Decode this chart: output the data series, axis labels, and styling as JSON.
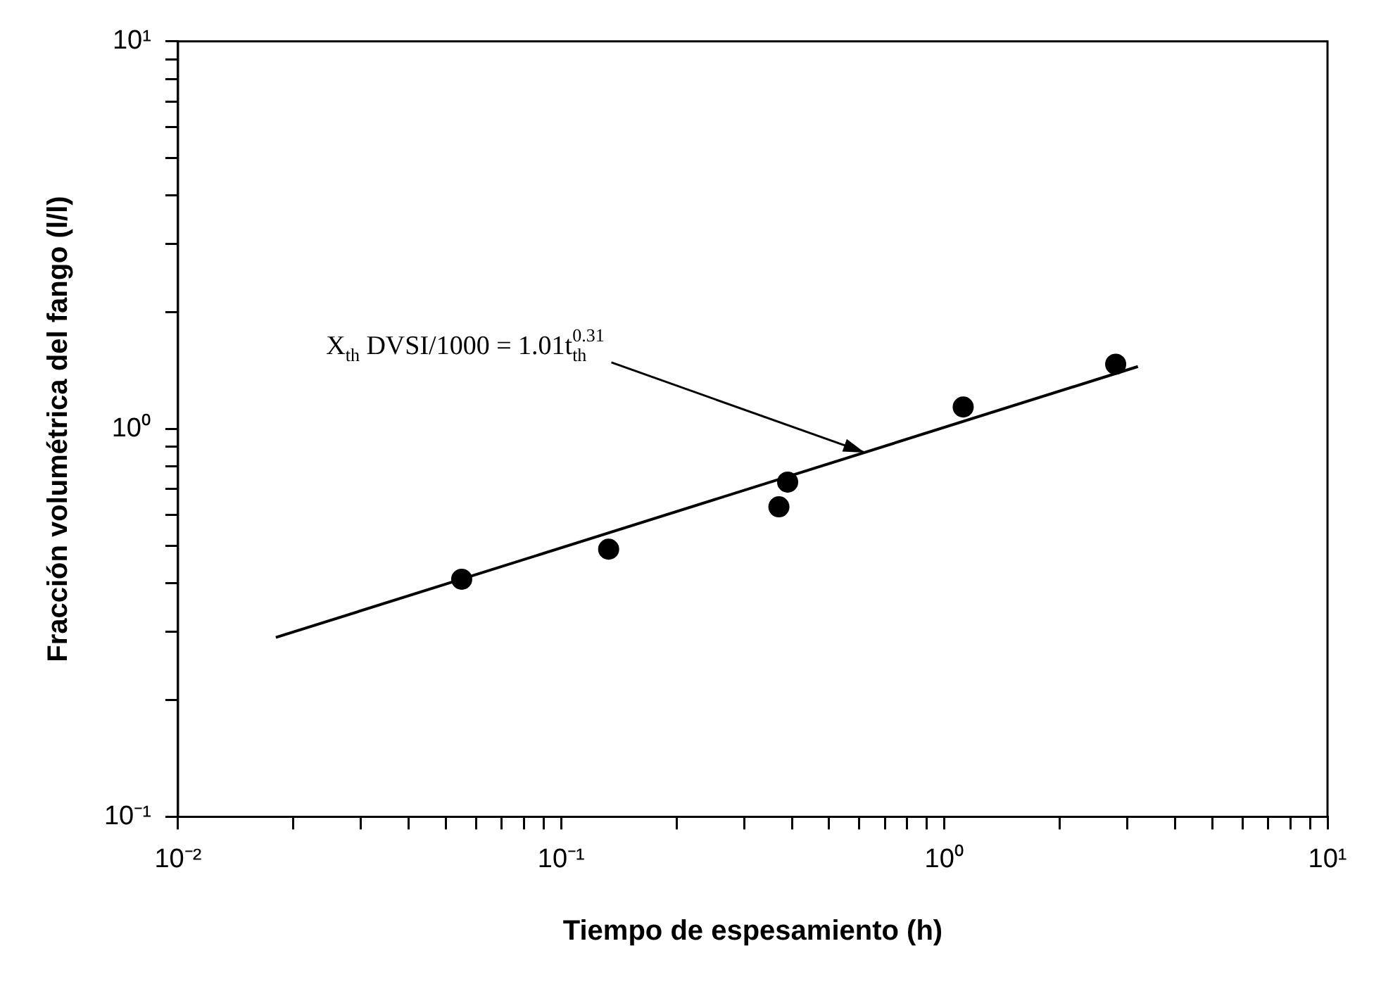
{
  "chart_data": {
    "type": "scatter",
    "xlabel": "Tiempo de espesamiento (h)",
    "ylabel": "Fracción volumétrica del fango (l/l)",
    "log": "xy",
    "xlim": [
      0.01,
      10
    ],
    "ylim": [
      0.1,
      10
    ],
    "xticks": [
      {
        "value": 0.01,
        "label": "10⁻²"
      },
      {
        "value": 0.02,
        "label": null
      },
      {
        "value": 0.03,
        "label": null
      },
      {
        "value": 0.04,
        "label": null
      },
      {
        "value": 0.05,
        "label": null
      },
      {
        "value": 0.06,
        "label": null
      },
      {
        "value": 0.07,
        "label": null
      },
      {
        "value": 0.08,
        "label": null
      },
      {
        "value": 0.09,
        "label": null
      },
      {
        "value": 0.1,
        "label": "10⁻¹"
      },
      {
        "value": 0.2,
        "label": null
      },
      {
        "value": 0.3,
        "label": null
      },
      {
        "value": 0.4,
        "label": null
      },
      {
        "value": 0.5,
        "label": null
      },
      {
        "value": 0.6,
        "label": null
      },
      {
        "value": 0.7,
        "label": null
      },
      {
        "value": 0.8,
        "label": null
      },
      {
        "value": 0.9,
        "label": null
      },
      {
        "value": 1,
        "label": "10⁰"
      },
      {
        "value": 2,
        "label": null
      },
      {
        "value": 3,
        "label": null
      },
      {
        "value": 4,
        "label": null
      },
      {
        "value": 5,
        "label": null
      },
      {
        "value": 6,
        "label": null
      },
      {
        "value": 7,
        "label": null
      },
      {
        "value": 8,
        "label": null
      },
      {
        "value": 9,
        "label": null
      },
      {
        "value": 10,
        "label": "10¹"
      }
    ],
    "yticks": [
      {
        "value": 0.1,
        "label": "10⁻¹"
      },
      {
        "value": 0.2,
        "label": null
      },
      {
        "value": 0.3,
        "label": null
      },
      {
        "value": 0.4,
        "label": null
      },
      {
        "value": 0.5,
        "label": null
      },
      {
        "value": 0.6,
        "label": null
      },
      {
        "value": 0.7,
        "label": null
      },
      {
        "value": 0.8,
        "label": null
      },
      {
        "value": 0.9,
        "label": null
      },
      {
        "value": 1,
        "label": "10⁰"
      },
      {
        "value": 2,
        "label": null
      },
      {
        "value": 3,
        "label": null
      },
      {
        "value": 4,
        "label": null
      },
      {
        "value": 5,
        "label": null
      },
      {
        "value": 6,
        "label": null
      },
      {
        "value": 7,
        "label": null
      },
      {
        "value": 8,
        "label": null
      },
      {
        "value": 9,
        "label": null
      },
      {
        "value": 10,
        "label": "10¹"
      }
    ],
    "series": [
      {
        "x": [
          0.055,
          0.133,
          0.37,
          0.39,
          1.12,
          2.8
        ],
        "values": [
          0.41,
          0.49,
          0.63,
          0.73,
          1.14,
          1.47
        ],
        "color": "#000000",
        "marker": "circle"
      },
      {
        "type": "line",
        "x": [
          0.018,
          3.2
        ],
        "values": [
          0.29,
          1.45
        ],
        "color": "#000000",
        "marker": "none"
      }
    ],
    "annotations": [
      {
        "text": "X$_{th}$ DVSI/1000 = 1.01t$_{th}$$^{0.31}$",
        "x": 0.62,
        "y": 0.87
      }
    ]
  }
}
